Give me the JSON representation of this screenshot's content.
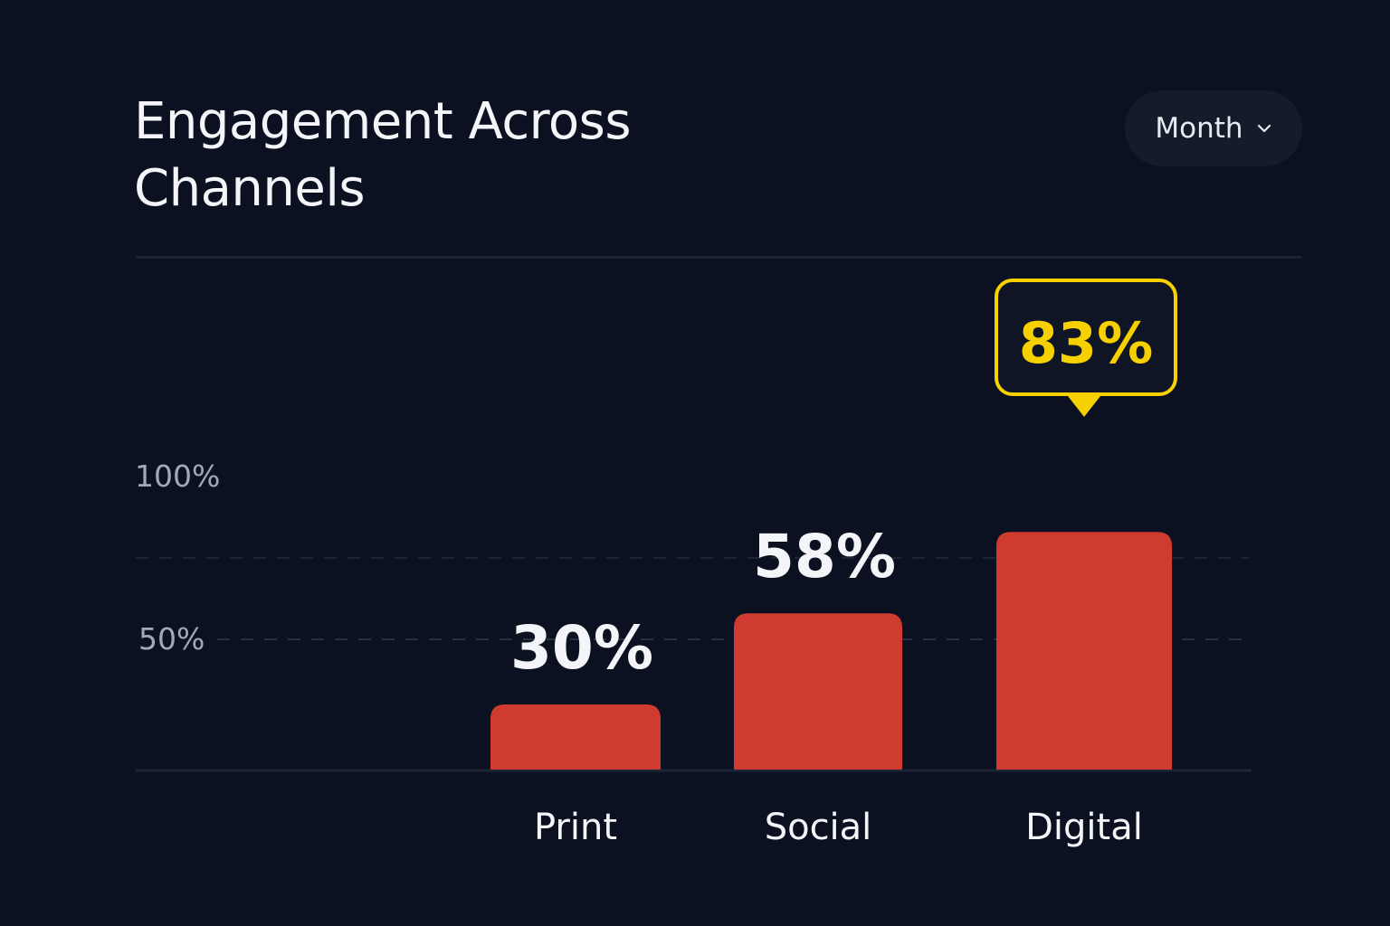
{
  "header": {
    "title_line1": "Engagement Across",
    "title_line2": "Channels",
    "period_select": {
      "value": "Month"
    }
  },
  "colors": {
    "background": "#0b1120",
    "bar": "#d03b30",
    "highlight": "#f7d000",
    "text": "#f3f5f8",
    "muted": "#a3a9b4"
  },
  "chart_data": {
    "type": "bar",
    "categories": [
      "Print",
      "Social",
      "Digital"
    ],
    "values": [
      30,
      58,
      83
    ],
    "value_labels": [
      "30%",
      "58%",
      "83%"
    ],
    "highlighted_category": "Digital",
    "yticks": [
      {
        "value": 50,
        "label": "50%"
      },
      {
        "value": 100,
        "label": "100%"
      }
    ],
    "ylim": [
      10,
      100
    ],
    "grid": "dashed",
    "title": "Engagement Across Channels",
    "xlabel": "",
    "ylabel": ""
  }
}
